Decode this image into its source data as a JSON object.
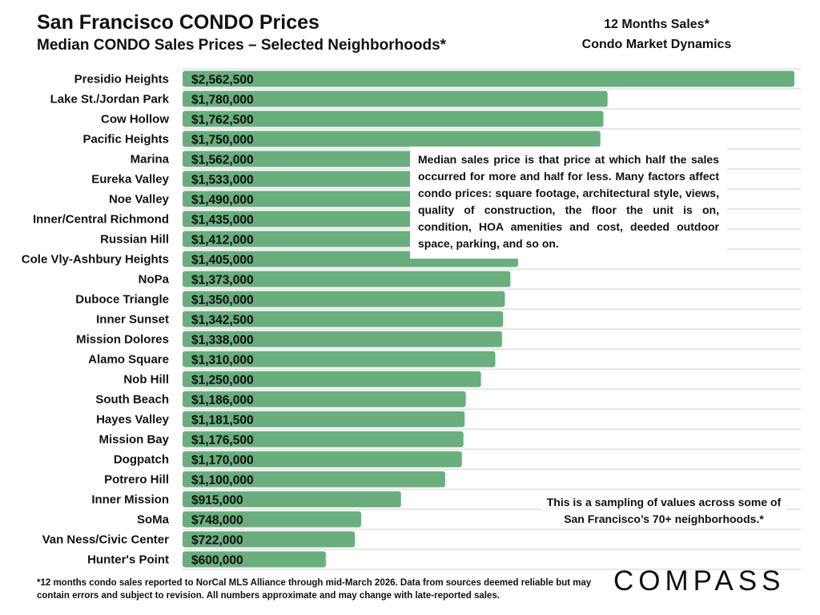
{
  "header": {
    "title": "San Francisco CONDO Prices",
    "subtitle": "Median CONDO Sales Prices – Selected Neighborhoods*",
    "side_line1": "12 Months Sales*",
    "side_line2": "Condo Market Dynamics"
  },
  "notes": {
    "median_explanation": "Median sales price is that price at which half the sales occurred for more and half for less. Many factors affect condo prices: square footage, architectural style, views, quality of construction, the floor the unit is on, condition, HOA amenities and cost, deeded outdoor space, parking, and so on.",
    "sampling": "This is a sampling of values across some of San Francisco’s 70+ neighborhoods.*"
  },
  "footnote": "*12 months condo sales reported to NorCal MLS Alliance through mid-March 2026. Data from sources deemed reliable but may contain errors and subject to revision. All numbers approximate and may change with late-reported sales.",
  "logo": "COMPASS",
  "colors": {
    "bar": "#6aae7e",
    "gridline": "#cfcfcf"
  },
  "chart_data": {
    "type": "bar",
    "orientation": "horizontal",
    "title": "San Francisco CONDO Prices",
    "xlabel": "",
    "ylabel": "",
    "xlim": [
      0,
      2562500
    ],
    "categories": [
      "Presidio Heights",
      "Lake St./Jordan Park",
      "Cow Hollow",
      "Pacific Heights",
      "Marina",
      "Eureka Valley",
      "Noe Valley",
      "Inner/Central Richmond",
      "Russian Hill",
      "Cole Vly-Ashbury Heights",
      "NoPa",
      "Duboce Triangle",
      "Inner Sunset",
      "Mission Dolores",
      "Alamo Square",
      "Nob Hill",
      "South Beach",
      "Hayes Valley",
      "Mission Bay",
      "Dogpatch",
      "Potrero Hill",
      "Inner Mission",
      "SoMa",
      "Van Ness/Civic Center",
      "Hunter's Point"
    ],
    "values": [
      2562500,
      1780000,
      1762500,
      1750000,
      1562000,
      1533000,
      1490000,
      1435000,
      1412000,
      1405000,
      1373000,
      1350000,
      1342500,
      1338000,
      1310000,
      1250000,
      1186000,
      1181500,
      1176500,
      1170000,
      1100000,
      915000,
      748000,
      722000,
      600000
    ],
    "value_labels": [
      "$2,562,500",
      "$1,780,000",
      "$1,762,500",
      "$1,750,000",
      "$1,562,000",
      "$1,533,000",
      "$1,490,000",
      "$1,435,000",
      "$1,412,000",
      "$1,405,000",
      "$1,373,000",
      "$1,350,000",
      "$1,342,500",
      "$1,338,000",
      "$1,310,000",
      "$1,250,000",
      "$1,186,000",
      "$1,181,500",
      "$1,176,500",
      "$1,170,000",
      "$1,100,000",
      "$915,000",
      "$748,000",
      "$722,000",
      "$600,000"
    ],
    "grid": true
  }
}
